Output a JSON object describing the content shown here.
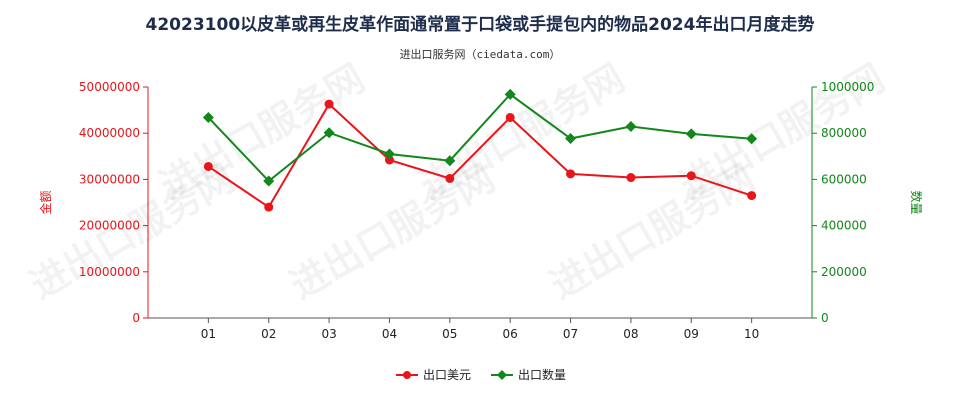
{
  "title": "42023100以皮革或再生皮革作面通常置于口袋或手提包内的物品2024年出口月度走势",
  "subtitle": "进出口服务网（ciedata.com）",
  "watermark": "进出口服务网",
  "colors": {
    "amount": "#e8151b",
    "quantity": "#12871b",
    "axis": "#555555",
    "title": "#1f2d4d"
  },
  "chart_data": {
    "type": "line",
    "categories": [
      "01",
      "02",
      "03",
      "04",
      "05",
      "06",
      "07",
      "08",
      "09",
      "10"
    ],
    "left_axis": {
      "label": "金额",
      "ylim": [
        0,
        50000000
      ],
      "ticks": [
        "0",
        "10000000",
        "20000000",
        "30000000",
        "40000000",
        "50000000"
      ]
    },
    "right_axis": {
      "label": "数量",
      "ylim": [
        0,
        1000000
      ],
      "ticks": [
        "0",
        "200000",
        "400000",
        "600000",
        "800000",
        "1000000"
      ]
    },
    "series": [
      {
        "name": "出口美元",
        "axis": "left",
        "marker": "circle",
        "color": "#e8151b",
        "values": [
          32800000,
          24000000,
          46300000,
          34200000,
          30200000,
          43400000,
          31200000,
          30400000,
          30800000,
          26500000
        ]
      },
      {
        "name": "出口数量",
        "axis": "right",
        "marker": "diamond",
        "color": "#12871b",
        "values": [
          868000,
          593000,
          802000,
          710000,
          681000,
          968000,
          777000,
          829000,
          797000,
          776000
        ]
      }
    ],
    "legend_position": "bottom-center",
    "grid": false
  }
}
